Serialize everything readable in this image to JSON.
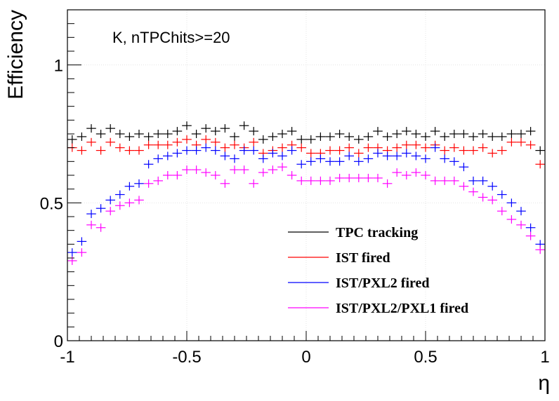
{
  "chart_data": {
    "type": "scatter",
    "title": "",
    "annotation": "K, nTPChits>=20",
    "xlabel": "η",
    "ylabel": "Efficiency",
    "xlim": [
      -1,
      1
    ],
    "ylim": [
      0,
      1.2
    ],
    "xticks": [
      -1,
      -0.5,
      0,
      0.5,
      1
    ],
    "xtick_labels": [
      "-1",
      "-0.5",
      "0",
      "0.5",
      "1"
    ],
    "yticks": [
      0,
      0.5,
      1
    ],
    "ytick_labels": [
      "0",
      "0.5",
      "1"
    ],
    "grid": true,
    "legend_position": "bottom-right",
    "bin_width": 0.04,
    "x": [
      -0.98,
      -0.94,
      -0.9,
      -0.86,
      -0.82,
      -0.78,
      -0.74,
      -0.7,
      -0.66,
      -0.62,
      -0.58,
      -0.54,
      -0.5,
      -0.46,
      -0.42,
      -0.38,
      -0.34,
      -0.3,
      -0.26,
      -0.22,
      -0.18,
      -0.14,
      -0.1,
      -0.06,
      -0.02,
      0.02,
      0.06,
      0.1,
      0.14,
      0.18,
      0.22,
      0.26,
      0.3,
      0.34,
      0.38,
      0.42,
      0.46,
      0.5,
      0.54,
      0.58,
      0.62,
      0.66,
      0.7,
      0.74,
      0.78,
      0.82,
      0.86,
      0.9,
      0.94,
      0.98
    ],
    "series": [
      {
        "name": "TPC tracking",
        "color": "#000000",
        "values": [
          0.73,
          0.74,
          0.77,
          0.75,
          0.77,
          0.75,
          0.74,
          0.75,
          0.74,
          0.75,
          0.75,
          0.76,
          0.78,
          0.75,
          0.77,
          0.76,
          0.77,
          0.74,
          0.78,
          0.76,
          0.73,
          0.74,
          0.75,
          0.76,
          0.73,
          0.73,
          0.74,
          0.74,
          0.75,
          0.74,
          0.73,
          0.74,
          0.76,
          0.74,
          0.75,
          0.76,
          0.75,
          0.74,
          0.76,
          0.74,
          0.75,
          0.75,
          0.74,
          0.75,
          0.74,
          0.74,
          0.75,
          0.75,
          0.76,
          0.69
        ]
      },
      {
        "name": "IST fired",
        "color": "#ff0000",
        "values": [
          0.7,
          0.69,
          0.72,
          0.69,
          0.72,
          0.7,
          0.69,
          0.69,
          0.71,
          0.71,
          0.71,
          0.72,
          0.73,
          0.71,
          0.73,
          0.72,
          0.7,
          0.71,
          0.7,
          0.72,
          0.68,
          0.69,
          0.7,
          0.71,
          0.7,
          0.68,
          0.68,
          0.69,
          0.69,
          0.7,
          0.68,
          0.7,
          0.7,
          0.69,
          0.7,
          0.71,
          0.71,
          0.7,
          0.71,
          0.69,
          0.7,
          0.69,
          0.69,
          0.7,
          0.68,
          0.69,
          0.72,
          0.72,
          0.71,
          0.64
        ]
      },
      {
        "name": "IST/PXL2 fired",
        "color": "#0000ff",
        "values": [
          0.32,
          0.36,
          0.46,
          0.48,
          0.51,
          0.53,
          0.56,
          0.57,
          0.64,
          0.66,
          0.67,
          0.68,
          0.69,
          0.69,
          0.7,
          0.69,
          0.67,
          0.66,
          0.69,
          0.69,
          0.66,
          0.68,
          0.67,
          0.69,
          0.64,
          0.65,
          0.66,
          0.65,
          0.65,
          0.67,
          0.65,
          0.66,
          0.68,
          0.67,
          0.67,
          0.68,
          0.67,
          0.66,
          0.7,
          0.66,
          0.65,
          0.63,
          0.58,
          0.58,
          0.56,
          0.53,
          0.5,
          0.47,
          0.41,
          0.35
        ]
      },
      {
        "name": "IST/PXL2/PXL1 fired",
        "color": "#ff00ff",
        "values": [
          0.29,
          0.32,
          0.42,
          0.41,
          0.47,
          0.49,
          0.5,
          0.51,
          0.57,
          0.58,
          0.6,
          0.6,
          0.62,
          0.62,
          0.61,
          0.6,
          0.57,
          0.62,
          0.62,
          0.57,
          0.61,
          0.62,
          0.63,
          0.6,
          0.58,
          0.58,
          0.58,
          0.58,
          0.59,
          0.59,
          0.59,
          0.59,
          0.59,
          0.57,
          0.61,
          0.6,
          0.61,
          0.6,
          0.58,
          0.58,
          0.58,
          0.56,
          0.54,
          0.52,
          0.51,
          0.47,
          0.44,
          0.42,
          0.38,
          0.33
        ]
      }
    ]
  }
}
